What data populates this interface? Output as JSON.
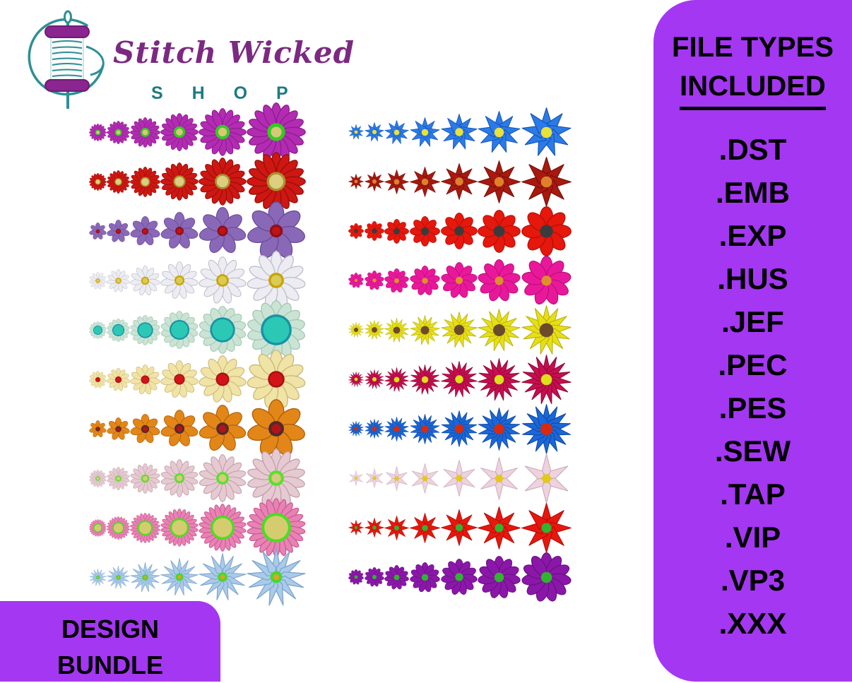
{
  "page": {
    "background": "#ffffff"
  },
  "logo": {
    "brand_script": "Stitch Wicked",
    "brand_sub": "S H O P",
    "spool_icon": "thread-spool-needle-icon",
    "colors": {
      "script_purple": "#7C2981",
      "sub_teal": "#1E7B82",
      "spool_purple": "#8B2590",
      "spool_teal": "#2F8F96"
    }
  },
  "sidebar": {
    "title_line1": "FILE TYPES",
    "title_line2": "INCLUDED",
    "background": "#A437F2",
    "text_color": "#000000",
    "file_types": [
      ".DST",
      ".EMB",
      ".EXP",
      ".HUS",
      ".JEF",
      ".PEC",
      ".PES",
      ".SEW",
      ".TAP",
      ".VIP",
      ".VP3",
      ".XXX"
    ]
  },
  "badge": {
    "line1": "DESIGN",
    "line2": "BUNDLE",
    "background": "#A437F2",
    "text_color": "#000000"
  },
  "flower_grid": {
    "columns": [
      {
        "side": "left",
        "sizes": [
          25,
          33,
          43,
          54,
          68,
          84
        ],
        "rows": [
          {
            "name": "magenta-daisy",
            "petals": 16,
            "shape": "daisy",
            "petal_width": 8,
            "petal_color": "#B32BB3",
            "petal_stroke": "#8A1F8A",
            "rings": [
              {
                "r": 15,
                "color": "#33CC22"
              },
              {
                "r": 9,
                "color": "#D9C878"
              }
            ]
          },
          {
            "name": "red-daisy",
            "petals": 16,
            "shape": "daisy",
            "petal_width": 8,
            "petal_color": "#CE1712",
            "petal_stroke": "#960F0B",
            "rings": [
              {
                "r": 16,
                "color": "#A8922E"
              },
              {
                "r": 12,
                "color": "#DCCE80"
              }
            ]
          },
          {
            "name": "lavender-seven-petal",
            "petals": 7,
            "shape": "oval",
            "petal_width": 13,
            "petal_color": "#8A68B8",
            "petal_stroke": "#6A4B96",
            "rings": [
              {
                "r": 11,
                "color": "#8E1016"
              },
              {
                "r": 7,
                "color": "#C01218"
              }
            ]
          },
          {
            "name": "white-daisy",
            "petals": 11,
            "shape": "daisy",
            "petal_width": 9,
            "petal_color": "#ECECF2",
            "petal_stroke": "#BFBFCC",
            "rings": [
              {
                "r": 13,
                "color": "#C9A208"
              },
              {
                "r": 9,
                "color": "#DACB52"
              }
            ]
          },
          {
            "name": "mint-teal-sunflower",
            "petals": 14,
            "shape": "daisy",
            "petal_width": 10,
            "petal_color": "#CBE3D4",
            "petal_stroke": "#A2C8B2",
            "rings": [
              {
                "r": 26,
                "color": "#1693A4"
              },
              {
                "r": 22,
                "color": "#2CC8B6"
              }
            ]
          },
          {
            "name": "cream-red-center-flower",
            "petals": 11,
            "shape": "daisy",
            "petal_width": 10,
            "petal_color": "#F0E3A6",
            "petal_stroke": "#CBB878",
            "rings": [
              {
                "r": 14,
                "color": "#A61014"
              },
              {
                "r": 11,
                "color": "#D21418"
              }
            ]
          },
          {
            "name": "orange-seven-petal",
            "petals": 7,
            "shape": "oval",
            "petal_width": 13,
            "petal_color": "#E28618",
            "petal_stroke": "#AE5E0A",
            "rings": [
              {
                "r": 13,
                "color": "#53292B"
              },
              {
                "r": 8,
                "color": "#B01418"
              }
            ]
          },
          {
            "name": "pale-pink-daisy",
            "petals": 14,
            "shape": "daisy",
            "petal_width": 8,
            "petal_color": "#E6CAD1",
            "petal_stroke": "#C4A0AC",
            "rings": [
              {
                "r": 13,
                "color": "#58E12C"
              },
              {
                "r": 8,
                "color": "#D8CA7E"
              }
            ]
          },
          {
            "name": "pink-gerbera",
            "petals": 22,
            "shape": "daisy",
            "petal_width": 6,
            "petal_color": "#E982B4",
            "petal_stroke": "#CC5C94",
            "rings": [
              {
                "r": 25,
                "color": "#4ADE22"
              },
              {
                "r": 20,
                "color": "#D5CC70"
              }
            ]
          },
          {
            "name": "light-blue-daisy",
            "petals": 13,
            "shape": "pointed",
            "petal_width": 7,
            "petal_color": "#AACAEA",
            "petal_stroke": "#7FA6CC",
            "rings": [
              {
                "r": 10,
                "color": "#46DA28"
              },
              {
                "r": 5,
                "color": "#DCA428"
              }
            ]
          }
        ]
      },
      {
        "side": "right",
        "sizes": [
          22,
          28,
          35,
          43,
          52,
          61,
          71
        ],
        "rows": [
          {
            "name": "blue-star-flower",
            "petals": 9,
            "shape": "star",
            "petal_width": 13,
            "petal_color": "#2B7AE8",
            "petal_stroke": "#1553B0",
            "rings": [
              {
                "r": 11,
                "color": "#E9E238"
              }
            ]
          },
          {
            "name": "dark-red-star-flower",
            "petals": 8,
            "shape": "star",
            "petal_width": 13,
            "petal_color": "#A8190F",
            "petal_stroke": "#72100A",
            "rings": [
              {
                "r": 11,
                "color": "#DF812C"
              }
            ]
          },
          {
            "name": "red-eight-petal",
            "petals": 8,
            "shape": "oval",
            "petal_width": 13,
            "petal_color": "#E6170C",
            "petal_stroke": "#AE0E07",
            "rings": [
              {
                "r": 13,
                "color": "#3B3B3B"
              }
            ]
          },
          {
            "name": "magenta-nine-petal",
            "petals": 9,
            "shape": "oval",
            "petal_width": 12,
            "petal_color": "#E9189B",
            "petal_stroke": "#B80E76",
            "rings": [
              {
                "r": 10,
                "color": "#DE8F2B"
              }
            ]
          },
          {
            "name": "yellow-sunflower",
            "petals": 13,
            "shape": "pointed",
            "petal_width": 9,
            "petal_color": "#E7DF16",
            "petal_stroke": "#BAB20F",
            "rings": [
              {
                "r": 14,
                "color": "#6C4B2C"
              }
            ]
          },
          {
            "name": "crimson-daisy",
            "petals": 15,
            "shape": "pointed",
            "petal_width": 8,
            "petal_color": "#C70E4E",
            "petal_stroke": "#8F0A39",
            "rings": [
              {
                "r": 11,
                "color": "#DCE018"
              }
            ]
          },
          {
            "name": "blue-pointed-flower",
            "petals": 14,
            "shape": "pointed",
            "petal_width": 9,
            "petal_color": "#1B67D7",
            "petal_stroke": "#0E4AA9",
            "rings": [
              {
                "r": 12,
                "color": "#D9290F"
              }
            ]
          },
          {
            "name": "pale-pink-six-petal-star",
            "petals": 6,
            "shape": "pointed",
            "petal_width": 9,
            "petal_color": "#EED3DF",
            "petal_stroke": "#CBA9BB",
            "rings": [
              {
                "r": 9,
                "color": "#E2CA18"
              }
            ]
          },
          {
            "name": "red-poinsettia-star",
            "petals": 8,
            "shape": "star",
            "petal_width": 12,
            "petal_color": "#E8170D",
            "petal_stroke": "#B00E08",
            "rings": [
              {
                "r": 10,
                "color": "#2FB52F"
              }
            ]
          },
          {
            "name": "purple-daisy",
            "petals": 11,
            "shape": "oval",
            "petal_width": 11,
            "petal_color": "#8B17A9",
            "petal_stroke": "#66107E",
            "rings": [
              {
                "r": 11,
                "color": "#2FB52F"
              }
            ]
          }
        ]
      }
    ]
  }
}
